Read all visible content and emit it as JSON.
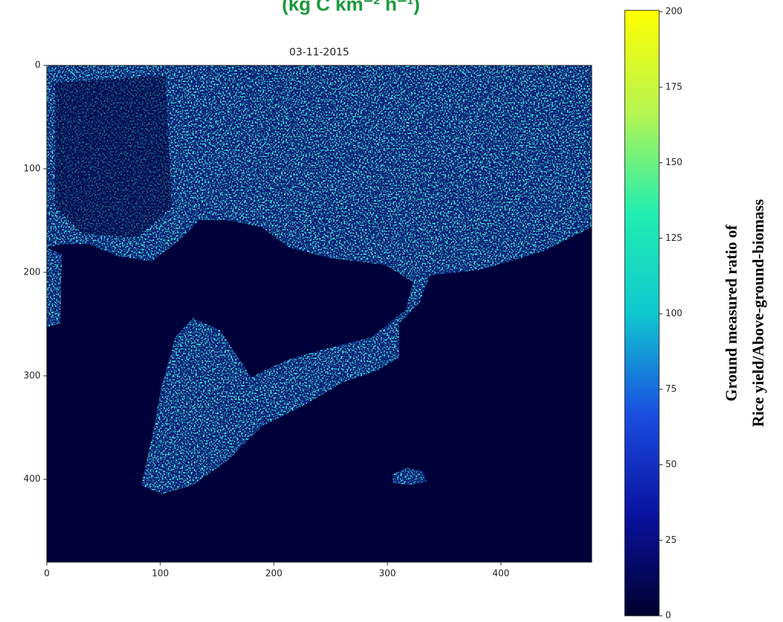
{
  "heading": "(kg C km⁻² h⁻¹)",
  "chart_data": {
    "type": "heatmap",
    "title": "03-11-2015",
    "xlim": [
      0,
      480
    ],
    "xticks": [
      0,
      100,
      200,
      300,
      400
    ],
    "ylim": [
      480,
      0
    ],
    "yticks": [
      0,
      100,
      200,
      300,
      400
    ],
    "colorbar": {
      "lim": [
        0,
        200
      ],
      "ticks": [
        0,
        25,
        50,
        75,
        100,
        125,
        150,
        175,
        200
      ],
      "colors": [
        "#00002e",
        "#0a12a0",
        "#1a4ee0",
        "#0fc8d0",
        "#22eeb0",
        "#b8f550",
        "#ffff00"
      ],
      "label": [
        "Ground measured ratio of",
        "Rice yield/Above-ground-biomass"
      ]
    }
  }
}
